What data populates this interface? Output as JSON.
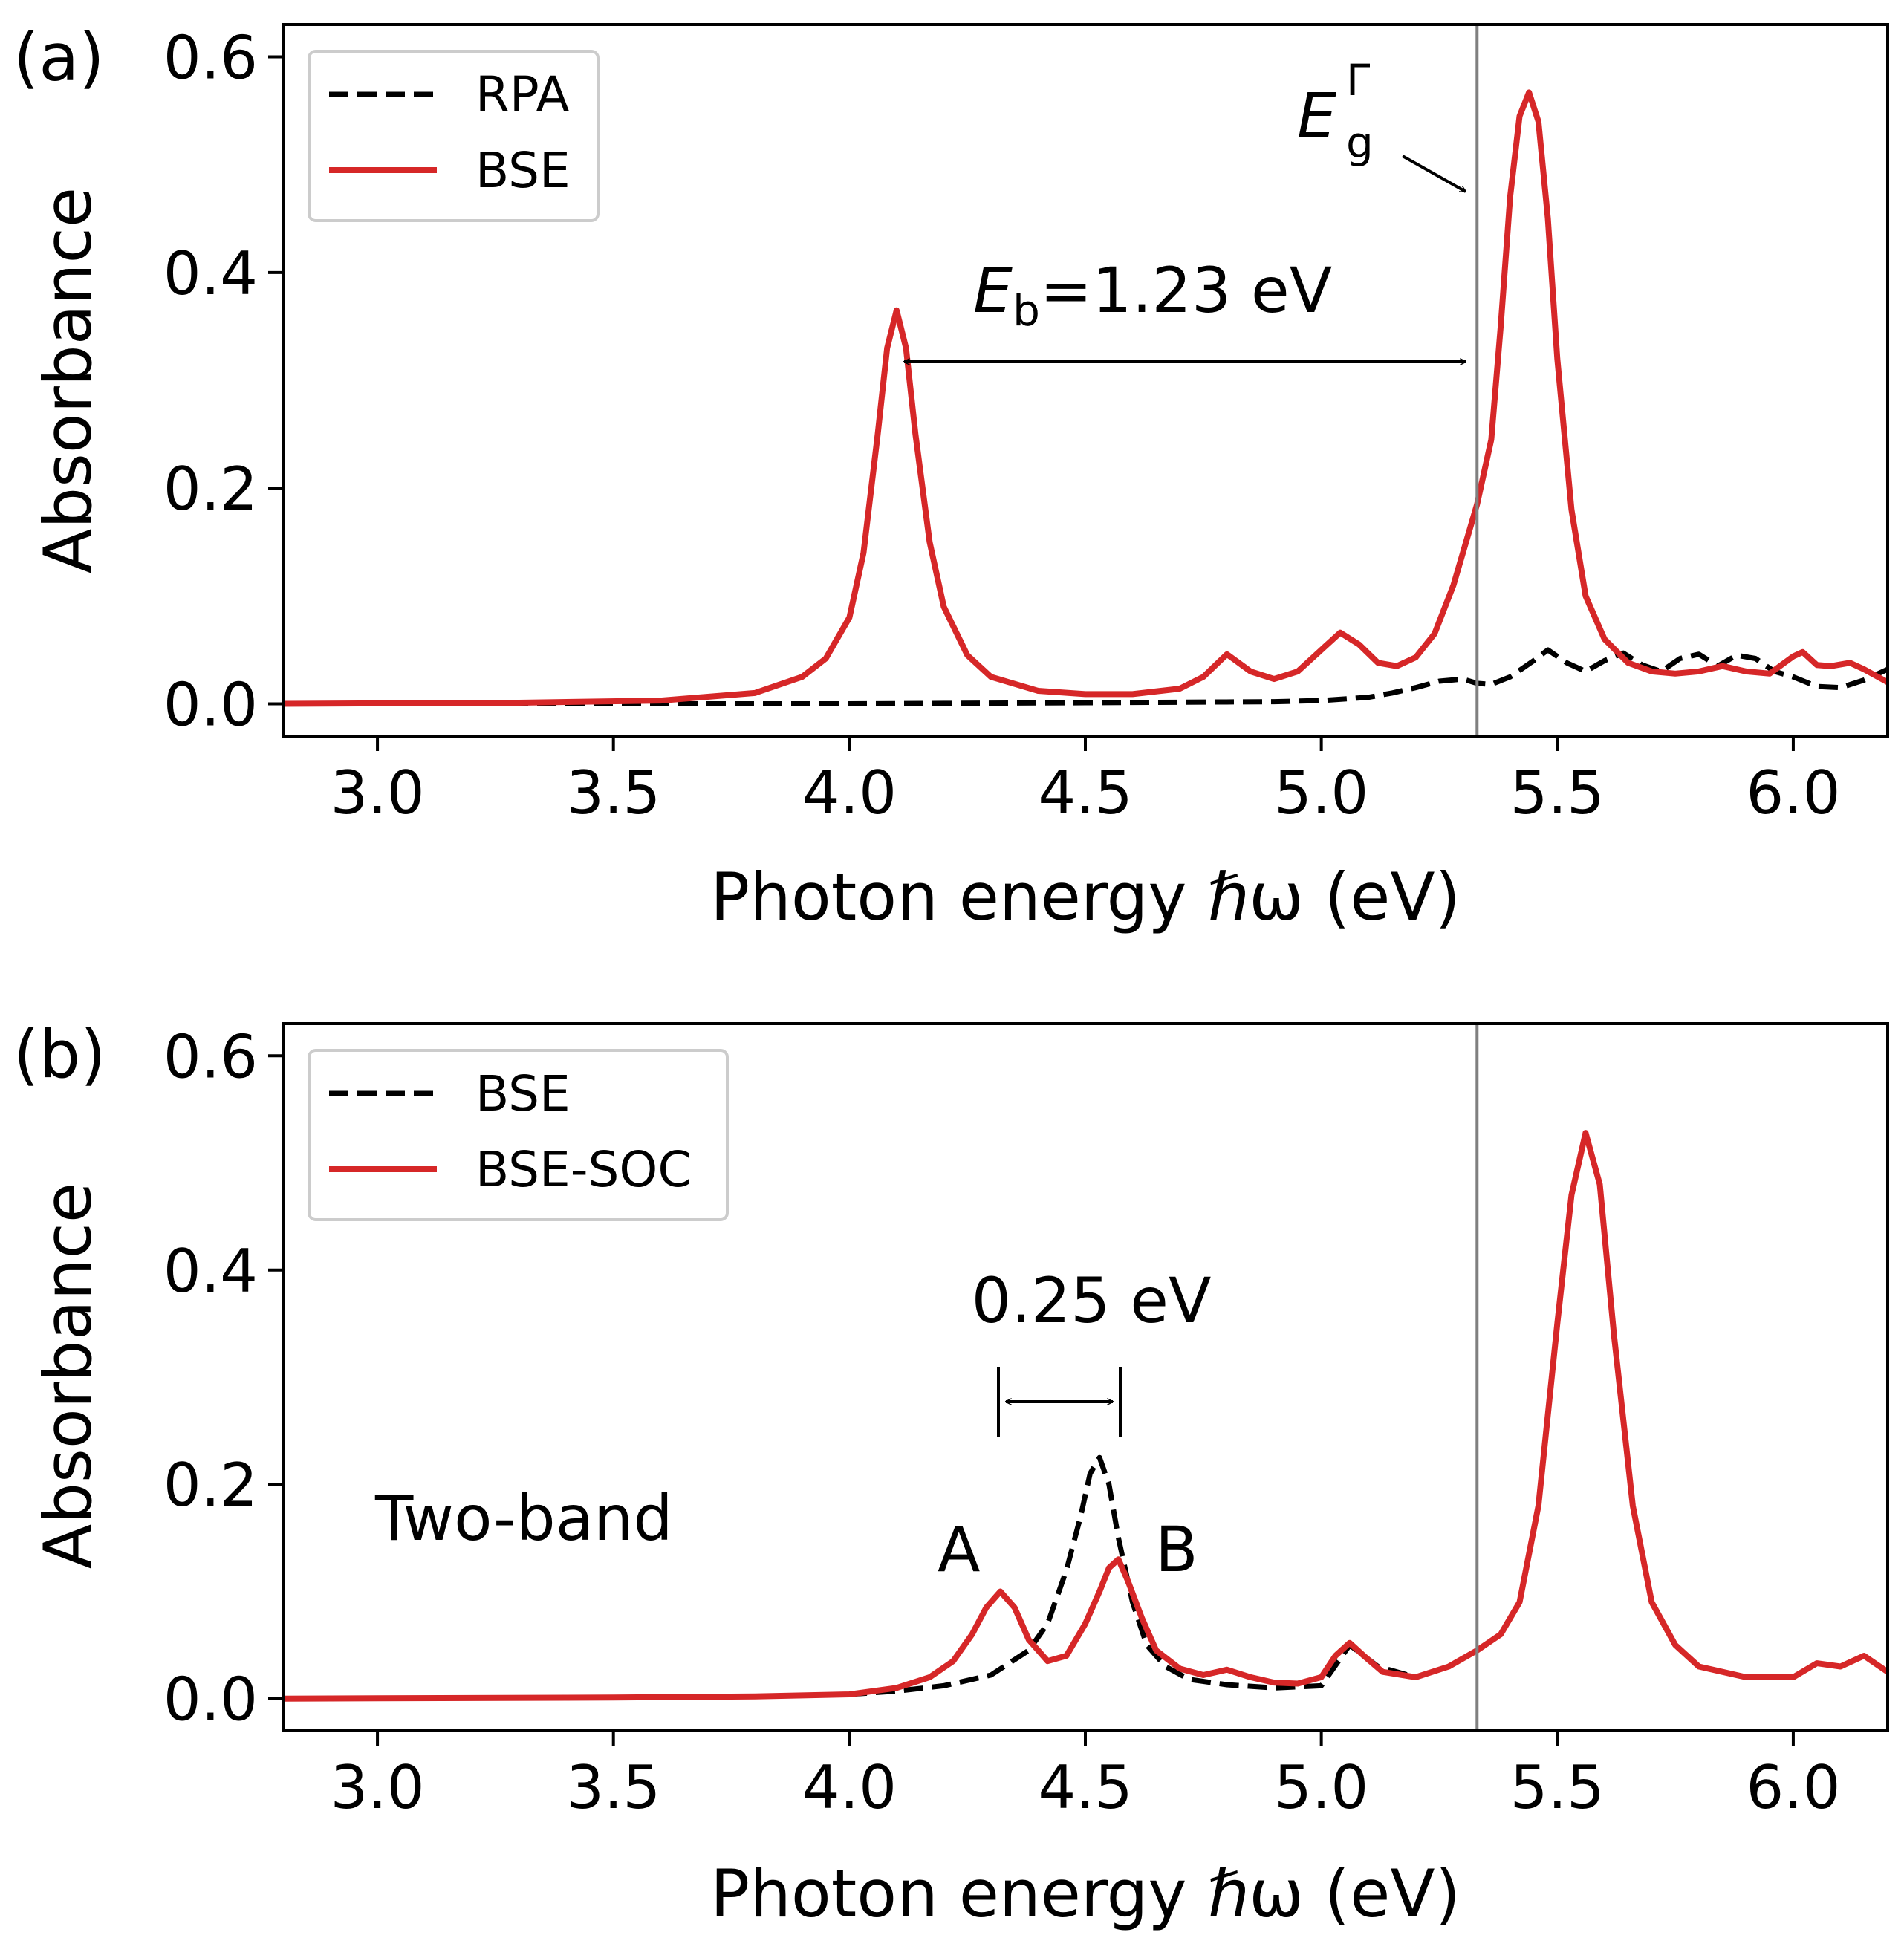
{
  "chart_data": [
    {
      "type": "line",
      "panel_label": "(a)",
      "xlabel": "Photon energy ℏω (eV)",
      "ylabel": "Absorbance",
      "xlim": [
        2.8,
        6.2
      ],
      "ylim": [
        -0.03,
        0.63
      ],
      "xticks": [
        "3.0",
        "3.5",
        "4.0",
        "4.5",
        "5.0",
        "5.5",
        "6.0"
      ],
      "yticks": [
        "0.0",
        "0.2",
        "0.4",
        "0.6"
      ],
      "vline_x": 5.33,
      "legend": {
        "placement": "top-left"
      },
      "series": [
        {
          "name": "RPA",
          "color": "#000000",
          "style": "dashed",
          "x": [
            2.8,
            4.0,
            4.5,
            4.9,
            5.0,
            5.1,
            5.15,
            5.2,
            5.25,
            5.3,
            5.33,
            5.36,
            5.4,
            5.45,
            5.48,
            5.52,
            5.56,
            5.6,
            5.64,
            5.68,
            5.72,
            5.76,
            5.8,
            5.84,
            5.88,
            5.92,
            5.96,
            6.0,
            6.05,
            6.1,
            6.15,
            6.2
          ],
          "y": [
            0.0,
            0.0,
            0.001,
            0.002,
            0.003,
            0.006,
            0.01,
            0.015,
            0.021,
            0.023,
            0.019,
            0.018,
            0.025,
            0.04,
            0.05,
            0.038,
            0.03,
            0.04,
            0.047,
            0.036,
            0.03,
            0.042,
            0.046,
            0.035,
            0.045,
            0.042,
            0.03,
            0.025,
            0.016,
            0.015,
            0.022,
            0.032
          ]
        },
        {
          "name": "BSE",
          "color": "#d62728",
          "style": "solid",
          "x": [
            2.8,
            3.3,
            3.6,
            3.8,
            3.9,
            3.95,
            4.0,
            4.03,
            4.06,
            4.08,
            4.1,
            4.12,
            4.14,
            4.17,
            4.2,
            4.25,
            4.3,
            4.4,
            4.5,
            4.6,
            4.7,
            4.75,
            4.8,
            4.85,
            4.9,
            4.95,
            5.0,
            5.04,
            5.08,
            5.12,
            5.16,
            5.2,
            5.24,
            5.28,
            5.3,
            5.33,
            5.36,
            5.38,
            5.4,
            5.42,
            5.44,
            5.46,
            5.48,
            5.5,
            5.53,
            5.56,
            5.6,
            5.65,
            5.7,
            5.75,
            5.8,
            5.85,
            5.9,
            5.95,
            6.0,
            6.02,
            6.05,
            6.08,
            6.12,
            6.15,
            6.2
          ],
          "y": [
            0.0,
            0.001,
            0.003,
            0.01,
            0.025,
            0.042,
            0.08,
            0.14,
            0.25,
            0.33,
            0.365,
            0.33,
            0.25,
            0.15,
            0.09,
            0.045,
            0.025,
            0.012,
            0.009,
            0.009,
            0.014,
            0.025,
            0.046,
            0.03,
            0.023,
            0.03,
            0.05,
            0.066,
            0.055,
            0.038,
            0.035,
            0.043,
            0.065,
            0.11,
            0.14,
            0.185,
            0.245,
            0.35,
            0.47,
            0.545,
            0.567,
            0.54,
            0.45,
            0.32,
            0.18,
            0.1,
            0.06,
            0.038,
            0.03,
            0.028,
            0.03,
            0.035,
            0.03,
            0.028,
            0.044,
            0.048,
            0.036,
            0.035,
            0.038,
            0.032,
            0.02
          ]
        }
      ],
      "annotations": {
        "eb_main": "E",
        "eb_sub": "b",
        "eb_value": "=1.23 eV",
        "eg_main": "E",
        "eg_sub": "g",
        "eg_sup": "Γ"
      }
    },
    {
      "type": "line",
      "panel_label": "(b)",
      "xlabel": "Photon energy ℏω (eV)",
      "ylabel": "Absorbance",
      "xlim": [
        2.8,
        6.2
      ],
      "ylim": [
        -0.03,
        0.63
      ],
      "xticks": [
        "3.0",
        "3.5",
        "4.0",
        "4.5",
        "5.0",
        "5.5",
        "6.0"
      ],
      "yticks": [
        "0.0",
        "0.2",
        "0.4",
        "0.6"
      ],
      "vline_x": 5.33,
      "legend": {
        "placement": "top-left"
      },
      "series": [
        {
          "name": "BSE",
          "color": "#000000",
          "style": "dashed",
          "x": [
            2.8,
            3.5,
            3.8,
            4.0,
            4.1,
            4.2,
            4.3,
            4.38,
            4.42,
            4.46,
            4.49,
            4.51,
            4.53,
            4.55,
            4.57,
            4.6,
            4.63,
            4.67,
            4.72,
            4.8,
            4.9,
            5.0,
            5.06,
            5.12,
            5.2,
            5.27,
            5.33,
            5.38,
            5.42,
            5.46,
            5.5,
            5.53,
            5.56,
            5.59,
            5.62,
            5.66,
            5.7,
            5.75,
            5.8,
            5.85,
            5.9,
            5.95,
            6.0,
            6.05,
            6.1,
            6.15,
            6.2
          ],
          "y": [
            0.0,
            0.001,
            0.002,
            0.004,
            0.007,
            0.012,
            0.022,
            0.045,
            0.07,
            0.12,
            0.17,
            0.21,
            0.225,
            0.2,
            0.15,
            0.09,
            0.05,
            0.03,
            0.018,
            0.013,
            0.01,
            0.012,
            0.05,
            0.03,
            0.02,
            0.03,
            0.045,
            0.06,
            0.09,
            0.18,
            0.35,
            0.47,
            0.528,
            0.48,
            0.34,
            0.18,
            0.09,
            0.05,
            0.03,
            0.025,
            0.02,
            0.02,
            0.02,
            0.033,
            0.03,
            0.04,
            0.025
          ]
        },
        {
          "name": "BSE-SOC",
          "color": "#d62728",
          "style": "solid",
          "x": [
            2.8,
            3.5,
            3.8,
            4.0,
            4.1,
            4.17,
            4.22,
            4.26,
            4.29,
            4.32,
            4.35,
            4.38,
            4.42,
            4.46,
            4.5,
            4.53,
            4.55,
            4.57,
            4.59,
            4.62,
            4.65,
            4.7,
            4.75,
            4.8,
            4.85,
            4.9,
            4.95,
            5.0,
            5.03,
            5.06,
            5.09,
            5.13,
            5.2,
            5.27,
            5.33,
            5.38,
            5.42,
            5.46,
            5.5,
            5.53,
            5.56,
            5.59,
            5.62,
            5.66,
            5.7,
            5.75,
            5.8,
            5.85,
            5.9,
            5.95,
            6.0,
            6.05,
            6.1,
            6.15,
            6.2
          ],
          "y": [
            0.0,
            0.001,
            0.002,
            0.004,
            0.01,
            0.02,
            0.035,
            0.06,
            0.085,
            0.1,
            0.085,
            0.055,
            0.035,
            0.04,
            0.07,
            0.1,
            0.122,
            0.13,
            0.11,
            0.075,
            0.045,
            0.028,
            0.022,
            0.027,
            0.02,
            0.015,
            0.014,
            0.02,
            0.04,
            0.052,
            0.04,
            0.025,
            0.02,
            0.03,
            0.045,
            0.06,
            0.09,
            0.18,
            0.35,
            0.47,
            0.528,
            0.48,
            0.34,
            0.18,
            0.09,
            0.05,
            0.03,
            0.025,
            0.02,
            0.02,
            0.02,
            0.033,
            0.03,
            0.04,
            0.025
          ]
        }
      ],
      "annotations": {
        "split_label": "0.25 eV",
        "two_band": "Two-band",
        "peak_a": "A",
        "peak_b": "B"
      }
    }
  ]
}
